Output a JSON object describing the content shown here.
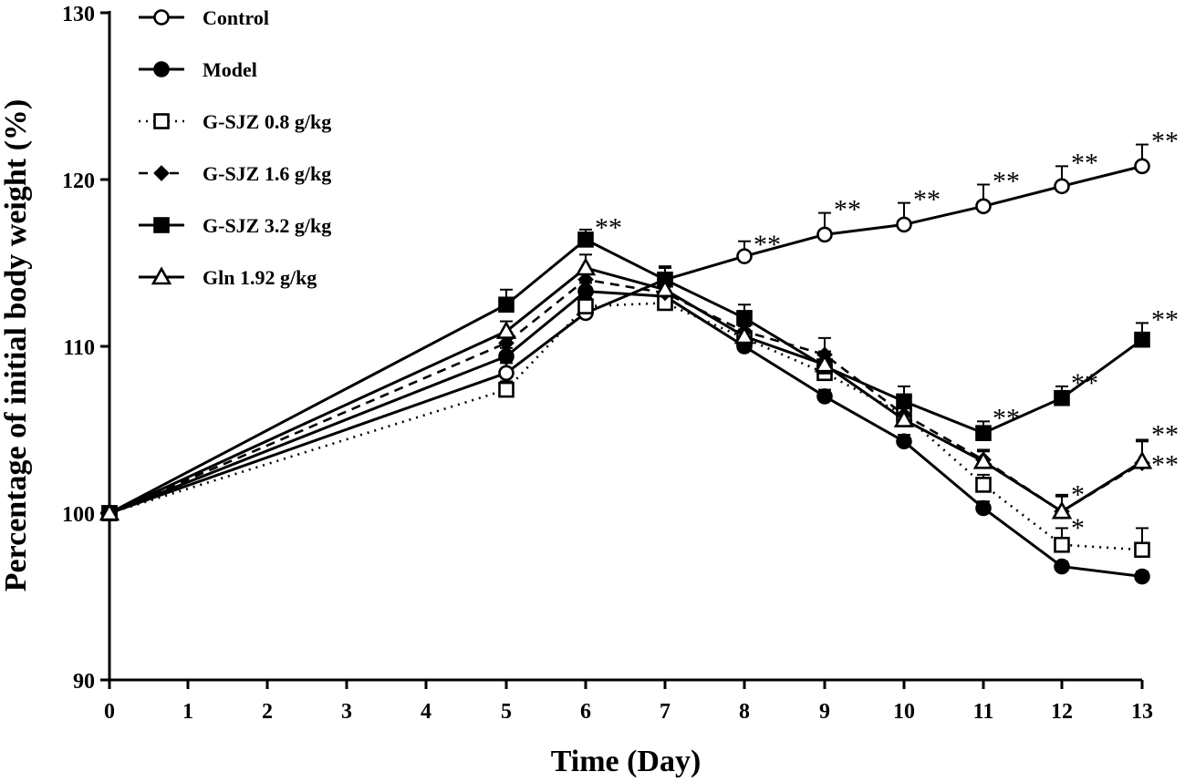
{
  "chart_data": {
    "type": "line",
    "title": "",
    "xlabel": "Time (Day)",
    "ylabel": "Percentage of initial body weight (%)",
    "x_ticks": [
      "0",
      "1",
      "2",
      "3",
      "4",
      "5",
      "6",
      "7",
      "8",
      "9",
      "10",
      "11",
      "12",
      "13"
    ],
    "y_ticks": [
      "90",
      "100",
      "110",
      "120",
      "130"
    ],
    "ylim": [
      90,
      130
    ],
    "legend_position": "top-left",
    "x": [
      0,
      5,
      6,
      7,
      8,
      9,
      10,
      11,
      12,
      13
    ],
    "series": [
      {
        "name": "Control",
        "marker": "circle-open",
        "line": "solid",
        "values": [
          100,
          108.4,
          112.0,
          114.0,
          115.4,
          116.7,
          117.3,
          118.4,
          119.6,
          120.8
        ],
        "errors": [
          0,
          0.6,
          0.4,
          0.8,
          0.9,
          1.3,
          1.3,
          1.3,
          1.2,
          1.3
        ]
      },
      {
        "name": "Model",
        "marker": "circle-filled",
        "line": "solid",
        "values": [
          100,
          109.4,
          113.3,
          113.0,
          110.0,
          107.0,
          104.3,
          100.3,
          96.8,
          96.2
        ],
        "errors": [
          0,
          0.5,
          0.5,
          0.6,
          0.5,
          0.4,
          0.4,
          0.4,
          0.3,
          0.3
        ]
      },
      {
        "name": "G-SJZ 0.8 g/kg",
        "marker": "square-open",
        "line": "dotted",
        "values": [
          100,
          107.4,
          112.4,
          112.6,
          110.5,
          108.4,
          105.9,
          101.7,
          98.1,
          97.8
        ],
        "errors": [
          0,
          0.5,
          0.5,
          0.6,
          0.5,
          0.5,
          0.5,
          0.6,
          1.0,
          1.3
        ]
      },
      {
        "name": "G-SJZ 1.6 g/kg",
        "marker": "diamond-filled",
        "line": "dashed",
        "values": [
          100,
          110.2,
          114.0,
          113.2,
          110.9,
          109.5,
          105.9,
          103.2,
          100.1,
          103.0
        ],
        "errors": [
          0,
          0.6,
          0.6,
          0.6,
          0.6,
          1.0,
          0.6,
          0.6,
          1.0,
          1.3
        ]
      },
      {
        "name": "G-SJZ 3.2 g/kg",
        "marker": "square-filled",
        "line": "solid",
        "values": [
          100,
          112.5,
          116.4,
          114.0,
          111.7,
          108.8,
          106.7,
          104.8,
          106.9,
          110.4
        ],
        "errors": [
          0,
          0.9,
          0.6,
          0.7,
          0.8,
          0.9,
          0.9,
          0.7,
          0.7,
          1.0
        ]
      },
      {
        "name": "Gln 1.92 g/kg",
        "marker": "triangle-open",
        "line": "solid",
        "values": [
          100,
          110.9,
          114.7,
          113.4,
          110.6,
          108.9,
          105.6,
          103.1,
          100.1,
          103.1
        ],
        "errors": [
          0,
          0.6,
          0.8,
          0.6,
          0.6,
          0.8,
          0.7,
          0.6,
          0.9,
          1.3
        ]
      }
    ],
    "annotations": [
      {
        "text": "**",
        "x": 6,
        "y": 116.9
      },
      {
        "text": "**",
        "x": 8,
        "y": 115.9
      },
      {
        "text": "**",
        "x": 9,
        "y": 118.0
      },
      {
        "text": "**",
        "x": 10,
        "y": 118.6
      },
      {
        "text": "**",
        "x": 11,
        "y": 119.7
      },
      {
        "text": "**",
        "x": 12,
        "y": 120.8
      },
      {
        "text": "**",
        "x": 13,
        "y": 122.1
      },
      {
        "text": "**",
        "x": 11,
        "y": 105.5
      },
      {
        "text": "**",
        "x": 12,
        "y": 107.6
      },
      {
        "text": "**",
        "x": 13,
        "y": 111.4
      },
      {
        "text": "**",
        "x": 13,
        "y": 104.5
      },
      {
        "text": "**",
        "x": 13,
        "y": 102.7
      },
      {
        "text": "*",
        "x": 12,
        "y": 100.9
      },
      {
        "text": "*",
        "x": 12,
        "y": 98.9
      }
    ]
  }
}
